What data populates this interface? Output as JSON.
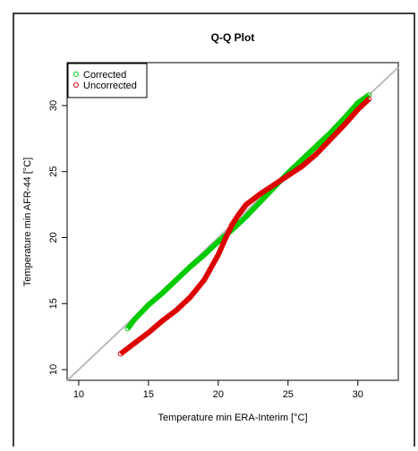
{
  "chart_data": {
    "type": "scatter",
    "title": "Q-Q Plot",
    "x_label": "Temperature min ERA-Interim [°C]",
    "y_label": "Temperature min AFR-44 [°C]",
    "xlim": [
      9.17,
      32.9
    ],
    "ylim": [
      9.19,
      33.25
    ],
    "xticks": [
      10,
      15,
      20,
      25,
      30
    ],
    "yticks": [
      10,
      15,
      20,
      25,
      30
    ],
    "legend": "top-left",
    "series": [
      {
        "name": "Corrected",
        "color": "#00cc00",
        "x": [
          13.5,
          14,
          15,
          16,
          17,
          18,
          19,
          20,
          21,
          22,
          23,
          24,
          25,
          26,
          27,
          28,
          29,
          30,
          30.8
        ],
        "values": [
          13.1,
          13.8,
          14.9,
          15.8,
          16.8,
          17.8,
          18.7,
          19.7,
          20.6,
          21.6,
          22.7,
          23.8,
          24.9,
          25.9,
          26.9,
          27.9,
          29,
          30.2,
          30.8
        ]
      },
      {
        "name": "Uncorrected",
        "color": "#dd0000",
        "x": [
          13,
          14,
          15,
          16,
          17,
          18,
          19,
          20,
          20.5,
          21,
          21.5,
          22,
          23,
          24,
          25,
          26,
          27,
          28,
          29,
          30,
          30.8
        ],
        "values": [
          11.2,
          12,
          12.8,
          13.7,
          14.5,
          15.5,
          16.8,
          18.7,
          19.9,
          21,
          21.8,
          22.5,
          23.3,
          24,
          24.7,
          25.4,
          26.3,
          27.4,
          28.5,
          29.7,
          30.5
        ]
      }
    ]
  }
}
